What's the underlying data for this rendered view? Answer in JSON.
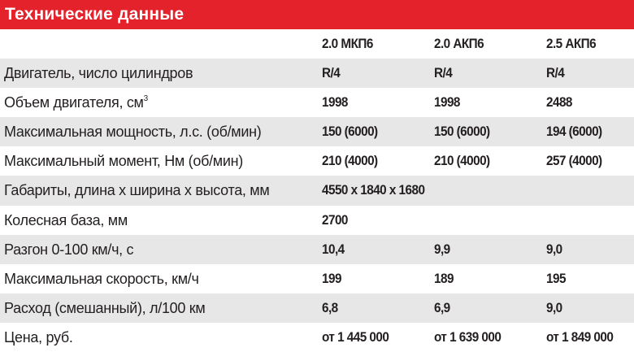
{
  "title": "Технические данные",
  "columns": [
    "2.0 МКП6",
    "2.0 АКП6",
    "2.5 АКП6"
  ],
  "rows": [
    {
      "label": "Двигатель, число цилиндров",
      "values": [
        "R/4",
        "R/4",
        "R/4"
      ]
    },
    {
      "label": "Объем двигателя, см",
      "sup": "3",
      "values": [
        "1998",
        "1998",
        "2488"
      ]
    },
    {
      "label": "Максимальная мощность, л.с. (об/мин)",
      "values": [
        "150 (6000)",
        "150 (6000)",
        "194 (6000)"
      ]
    },
    {
      "label": "Максимальный момент, Нм (об/мин)",
      "values": [
        "210 (4000)",
        "210 (4000)",
        "257 (4000)"
      ]
    },
    {
      "label": "Габариты, длина х ширина х высота, мм",
      "values": [
        "4550 x 1840 x 1680"
      ]
    },
    {
      "label": "Колесная база, мм",
      "values": [
        "2700"
      ]
    },
    {
      "label": "Разгон 0-100 км/ч, с",
      "values": [
        "10,4",
        "9,9",
        "9,0"
      ]
    },
    {
      "label": "Максимальная скорость, км/ч",
      "values": [
        "199",
        "189",
        "195"
      ]
    },
    {
      "label": "Расход (смешанный), л/100 км",
      "values": [
        "6,8",
        "6,9",
        "9,0"
      ]
    },
    {
      "label": "Цена, руб.",
      "values": [
        "от 1 445 000",
        "от 1 639 000",
        "от 1 849 000"
      ]
    }
  ],
  "colors": {
    "header": "#e3222b",
    "stripe": "#e7e7e8"
  }
}
